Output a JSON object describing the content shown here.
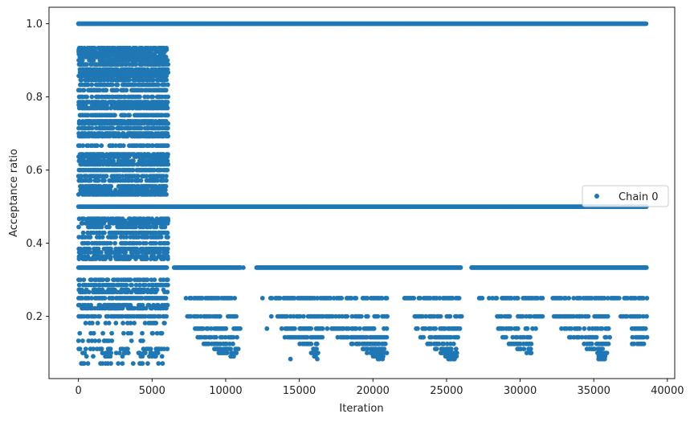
{
  "chart_data": {
    "type": "scatter",
    "title": "",
    "xlabel": "Iteration",
    "ylabel": "Acceptance ratio",
    "xlim": [
      -2000,
      40500
    ],
    "ylim": [
      0.03,
      1.045
    ],
    "xticks": [
      0,
      5000,
      10000,
      15000,
      20000,
      25000,
      30000,
      35000,
      40000
    ],
    "yticks": [
      0.2,
      0.4,
      0.6,
      0.8,
      1.0
    ],
    "xtick_labels": [
      "0",
      "5000",
      "10000",
      "15000",
      "20000",
      "25000",
      "30000",
      "35000",
      "40000"
    ],
    "ytick_labels": [
      "0.2",
      "0.4",
      "0.6",
      "0.8",
      "1.0"
    ],
    "grid": false,
    "legend_position": "center-right",
    "series": [
      {
        "name": "Chain 0",
        "color": "#1f77b4",
        "x_range": [
          0,
          38600
        ],
        "bands": [
          {
            "y": 1.0,
            "segments": [
              [
                0,
                5800
              ],
              [
                5800,
                38600
              ]
            ]
          },
          {
            "y": 0.5,
            "segments": [
              [
                0,
                38600
              ]
            ]
          },
          {
            "y": 0.3333,
            "segments": [
              [
                0,
                6000
              ],
              [
                6500,
                11000
              ],
              [
                12100,
                26000
              ],
              [
                26700,
                38600
              ]
            ]
          },
          {
            "y": 0.25,
            "segments": [
              [
                0,
                6000
              ],
              [
                7300,
                10900
              ],
              [
                12800,
                21000
              ],
              [
                22000,
                26000
              ],
              [
                27200,
                31500
              ],
              [
                32200,
                38600
              ]
            ]
          },
          {
            "y": 0.2,
            "segments": [
              [
                0,
                6000
              ],
              [
                7400,
                11000
              ],
              [
                13500,
                16800
              ],
              [
                16900,
                21000
              ],
              [
                22700,
                26000
              ],
              [
                28300,
                31500
              ],
              [
                32300,
                36200
              ],
              [
                36800,
                38600
              ]
            ]
          },
          {
            "y": 0.1667,
            "segments": [
              [
                7900,
                11000
              ],
              [
                13800,
                16600
              ],
              [
                17200,
                21000
              ],
              [
                22900,
                26000
              ],
              [
                28500,
                31200
              ],
              [
                32800,
                36200
              ],
              [
                37600,
                38600
              ]
            ]
          },
          {
            "y": 0.1429,
            "segments": [
              [
                8100,
                10800
              ],
              [
                14000,
                16600
              ],
              [
                17600,
                20900
              ],
              [
                23200,
                25800
              ],
              [
                28800,
                31000
              ],
              [
                33200,
                36100
              ],
              [
                37600,
                38600
              ]
            ]
          },
          {
            "y": 0.125,
            "segments": [
              [
                8500,
                10800
              ],
              [
                15000,
                16300
              ],
              [
                18400,
                20900
              ],
              [
                23700,
                25600
              ],
              [
                29200,
                30900
              ],
              [
                34200,
                36000
              ],
              [
                37600,
                38600
              ]
            ]
          },
          {
            "y": 0.1111,
            "segments": [
              [
                9200,
                10900
              ],
              [
                15700,
                16200
              ],
              [
                19300,
                20800
              ],
              [
                24200,
                25700
              ],
              [
                29800,
                30700
              ],
              [
                34500,
                35900
              ]
            ]
          },
          {
            "y": 0.1,
            "segments": [
              [
                9500,
                10800
              ],
              [
                15800,
                16300
              ],
              [
                19600,
                21000
              ],
              [
                24600,
                25700
              ],
              [
                30200,
                30800
              ],
              [
                35000,
                35900
              ]
            ]
          },
          {
            "y": 0.0909,
            "segments": [
              [
                10300,
                10800
              ],
              [
                16000,
                16200
              ],
              [
                20000,
                20800
              ],
              [
                24900,
                25700
              ],
              [
                35200,
                35800
              ]
            ]
          },
          {
            "y": 0.0833,
            "segments": [
              [
                10500,
                10700
              ],
              [
                16200,
                16300
              ],
              [
                20200,
                20700
              ],
              [
                25100,
                25600
              ],
              [
                35300,
                35800
              ]
            ]
          }
        ],
        "early_levels": [
          0.9333,
          0.9286,
          0.9231,
          0.9167,
          0.9091,
          0.9,
          0.8889,
          0.875,
          0.8667,
          0.8571,
          0.8462,
          0.8333,
          0.8182,
          0.8,
          0.7857,
          0.7778,
          0.7692,
          0.75,
          0.7333,
          0.7273,
          0.7143,
          0.7,
          0.6923,
          0.6667,
          0.6429,
          0.6364,
          0.625,
          0.6154,
          0.6,
          0.5833,
          0.5714,
          0.5556,
          0.5455,
          0.5385,
          0.5333,
          0.4667,
          0.4615,
          0.4545,
          0.4444,
          0.4286,
          0.4167,
          0.4,
          0.3846,
          0.375,
          0.3636,
          0.3571,
          0.3,
          0.2857,
          0.2727,
          0.2667,
          0.2308,
          0.2222,
          0.1818,
          0.1538,
          0.1333,
          0.1111,
          0.1,
          0.0909,
          0.0714
        ],
        "early_x_range": [
          0,
          6100
        ],
        "isolated_points": [
          [
            0,
            1.0
          ],
          [
            11200,
            0.3333
          ],
          [
            12500,
            0.25
          ],
          [
            12800,
            0.1667
          ],
          [
            7400,
            0.2
          ],
          [
            13100,
            0.2
          ],
          [
            14400,
            0.0833
          ],
          [
            16900,
            0.1667
          ],
          [
            37600,
            0.1667
          ]
        ]
      }
    ]
  }
}
